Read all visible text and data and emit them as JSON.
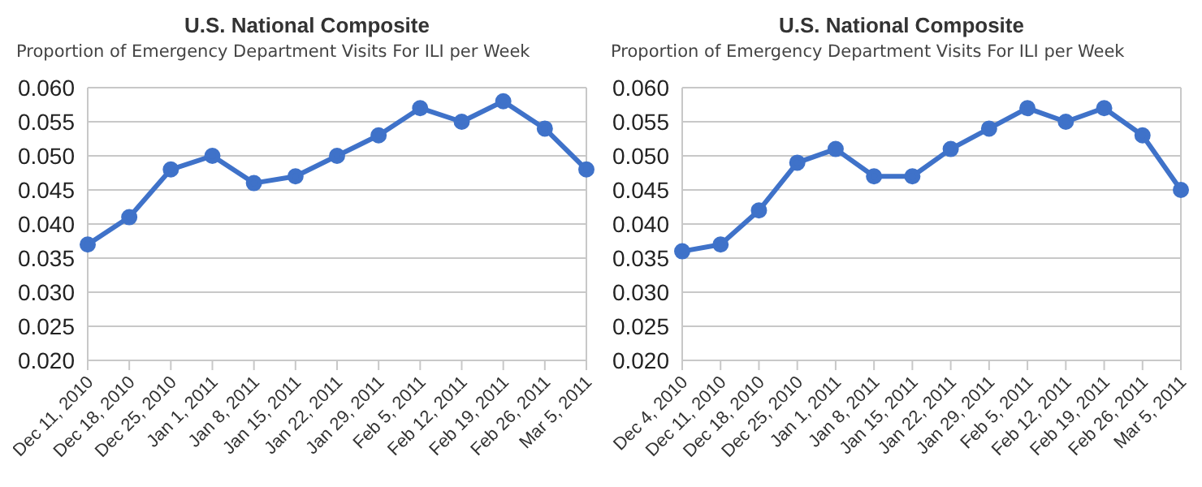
{
  "chart_data": [
    {
      "type": "line",
      "title": "U.S. National Composite",
      "subtitle": "Proportion of Emergency Department Visits For ILI per Week",
      "categories": [
        "Dec 11, 2010",
        "Dec 18, 2010",
        "Dec 25, 2010",
        "Jan 1, 2011",
        "Jan 8, 2011",
        "Jan 15, 2011",
        "Jan 22, 2011",
        "Jan 29, 2011",
        "Feb 5, 2011",
        "Feb 12, 2011",
        "Feb 19, 2011",
        "Feb 26, 2011",
        "Mar 5, 2011"
      ],
      "series": [
        {
          "color": "#3f72c9",
          "values": [
            0.037,
            0.041,
            0.048,
            0.05,
            0.046,
            0.047,
            0.05,
            0.053,
            0.057,
            0.055,
            0.058,
            0.054,
            0.048
          ]
        }
      ],
      "ylim": [
        0.02,
        0.06
      ],
      "yticks": [
        {
          "value": 0.02,
          "label": "0.020"
        },
        {
          "value": 0.025,
          "label": "0.025"
        },
        {
          "value": 0.03,
          "label": "0.030"
        },
        {
          "value": 0.035,
          "label": "0.035"
        },
        {
          "value": 0.04,
          "label": "0.040"
        },
        {
          "value": 0.045,
          "label": "0.045"
        },
        {
          "value": 0.05,
          "label": "0.050"
        },
        {
          "value": 0.055,
          "label": "0.055"
        },
        {
          "value": 0.06,
          "label": "0.060"
        }
      ],
      "grid": "y",
      "marker": "circle",
      "line_style": "solid"
    },
    {
      "type": "line",
      "title": "U.S. National Composite",
      "subtitle": "Proportion of Emergency Department Visits For ILI per Week",
      "categories": [
        "Dec 4, 2010",
        "Dec 11, 2010",
        "Dec 18, 2010",
        "Dec 25, 2010",
        "Jan 1, 2011",
        "Jan 8, 2011",
        "Jan 15, 2011",
        "Jan 22, 2011",
        "Jan 29, 2011",
        "Feb 5, 2011",
        "Feb 12, 2011",
        "Feb 19, 2011",
        "Feb 26, 2011",
        "Mar 5, 2011"
      ],
      "series": [
        {
          "color": "#3f72c9",
          "values": [
            0.036,
            0.037,
            0.042,
            0.049,
            0.051,
            0.047,
            0.047,
            0.051,
            0.054,
            0.057,
            0.055,
            0.057,
            0.053,
            0.045
          ]
        }
      ],
      "ylim": [
        0.02,
        0.06
      ],
      "yticks": [
        {
          "value": 0.02,
          "label": "0.020"
        },
        {
          "value": 0.025,
          "label": "0.025"
        },
        {
          "value": 0.03,
          "label": "0.030"
        },
        {
          "value": 0.035,
          "label": "0.035"
        },
        {
          "value": 0.04,
          "label": "0.040"
        },
        {
          "value": 0.045,
          "label": "0.045"
        },
        {
          "value": 0.05,
          "label": "0.050"
        },
        {
          "value": 0.055,
          "label": "0.055"
        },
        {
          "value": 0.06,
          "label": "0.060"
        }
      ],
      "grid": "y",
      "marker": "circle",
      "line_style": "solid"
    }
  ]
}
